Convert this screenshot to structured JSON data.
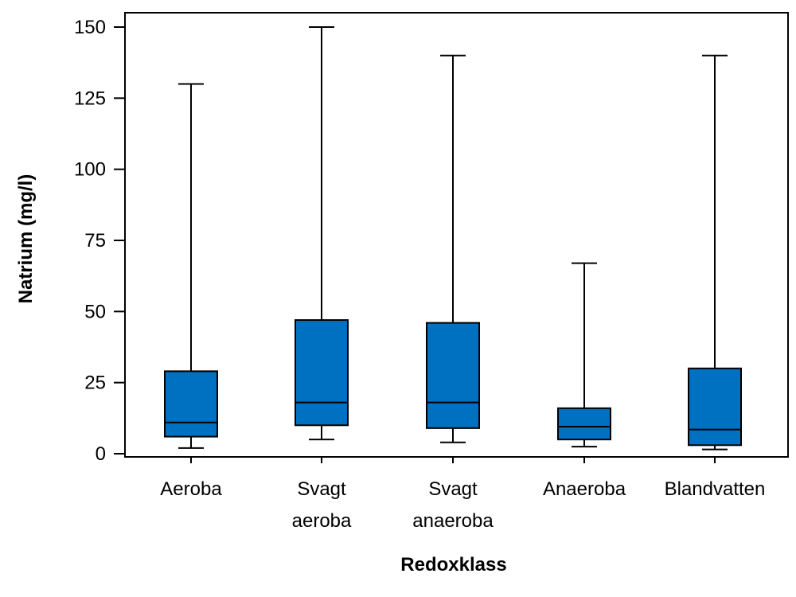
{
  "chart_data": {
    "type": "boxplot",
    "title": "",
    "xlabel": "Redoxklass",
    "ylabel": "Natrium (mg/l)",
    "ylim": [
      0,
      150
    ],
    "yticks": [
      0,
      25,
      50,
      75,
      100,
      125,
      150
    ],
    "grid": false,
    "box_color": "#0070C0",
    "categories": [
      {
        "label": [
          "Aeroba"
        ],
        "min": 2,
        "q1": 6,
        "median": 11,
        "q3": 29,
        "max": 130
      },
      {
        "label": [
          "Svagt",
          "aeroba"
        ],
        "min": 5,
        "q1": 10,
        "median": 18,
        "q3": 47,
        "max": 150
      },
      {
        "label": [
          "Svagt",
          "anaeroba"
        ],
        "min": 4,
        "q1": 9,
        "median": 18,
        "q3": 46,
        "max": 140
      },
      {
        "label": [
          "Anaeroba"
        ],
        "min": 2.5,
        "q1": 5,
        "median": 9.5,
        "q3": 16,
        "max": 67
      },
      {
        "label": [
          "Blandvatten"
        ],
        "min": 1.5,
        "q1": 3,
        "median": 8.5,
        "q3": 30,
        "max": 140
      }
    ]
  }
}
